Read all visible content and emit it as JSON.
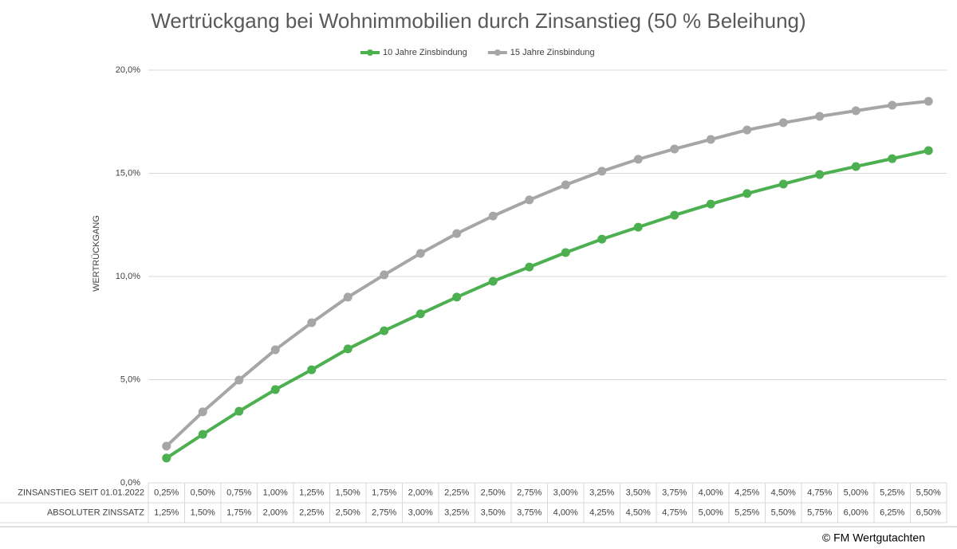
{
  "chart_data": {
    "type": "line",
    "title": "Wertrückgang bei Wohnimmobilien durch Zinsanstieg (50 % Beleihung)",
    "y_label": "WERTRÜCKGANG",
    "category_rows": [
      {
        "name": "ZINSANSTIEG SEIT 01.01.2022",
        "labels": [
          "0,25%",
          "0,50%",
          "0,75%",
          "1,00%",
          "1,25%",
          "1,50%",
          "1,75%",
          "2,00%",
          "2,25%",
          "2,50%",
          "2,75%",
          "3,00%",
          "3,25%",
          "3,50%",
          "3,75%",
          "4,00%",
          "4,25%",
          "4,50%",
          "4,75%",
          "5,00%",
          "5,25%",
          "5,50%"
        ]
      },
      {
        "name": "ABSOLUTER ZINSSATZ",
        "labels": [
          "1,25%",
          "1,50%",
          "1,75%",
          "2,00%",
          "2,25%",
          "2,50%",
          "2,75%",
          "3,00%",
          "3,25%",
          "3,50%",
          "3,75%",
          "4,00%",
          "4,25%",
          "4,50%",
          "4,75%",
          "5,00%",
          "5,25%",
          "5,50%",
          "5,75%",
          "6,00%",
          "6,25%",
          "6,50%"
        ]
      }
    ],
    "series": [
      {
        "name": "10 Jahre Zinsbindung",
        "color": "#4caf50",
        "values": [
          1.2,
          2.35,
          3.47,
          4.52,
          5.48,
          6.49,
          7.37,
          8.19,
          9.0,
          9.77,
          10.46,
          11.16,
          11.81,
          12.39,
          12.97,
          13.51,
          14.02,
          14.48,
          14.94,
          15.33,
          15.71,
          16.1
        ]
      },
      {
        "name": "15 Jahre Zinsbindung",
        "color": "#a6a6a6",
        "values": [
          1.78,
          3.44,
          4.98,
          6.45,
          7.76,
          9.0,
          10.08,
          11.12,
          12.08,
          12.93,
          13.71,
          14.44,
          15.1,
          15.68,
          16.18,
          16.64,
          17.1,
          17.45,
          17.76,
          18.03,
          18.3,
          18.49
        ]
      }
    ],
    "ylim": [
      0,
      20
    ],
    "yticks": [
      {
        "value": 0,
        "label": "0,0%"
      },
      {
        "value": 5,
        "label": "5,0%"
      },
      {
        "value": 10,
        "label": "10,0%"
      },
      {
        "value": 15,
        "label": "15,0%"
      },
      {
        "value": 20,
        "label": "20,0%"
      }
    ],
    "grid": true,
    "legend": "top",
    "footer": "© FM Wertgutachten"
  }
}
